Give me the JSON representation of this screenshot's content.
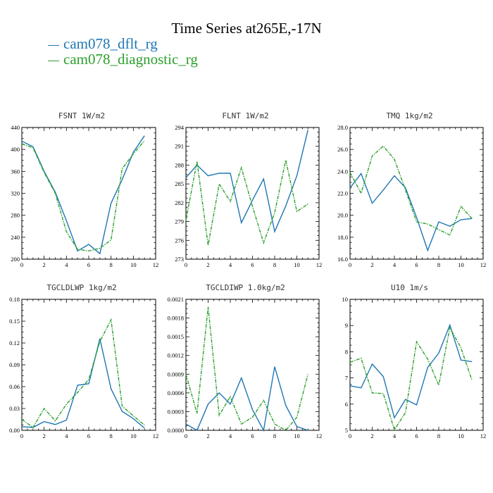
{
  "title": "Time Series at265E,-17N",
  "legend": [
    {
      "label": "cam078_dflt_rg",
      "color": "#1f77b4"
    },
    {
      "label": "cam078_diagnostic_rg",
      "color": "#2ca02c"
    }
  ],
  "chart_data": [
    {
      "type": "line",
      "title": "FSNT   1W/m2",
      "xlim": [
        0,
        12
      ],
      "xticks": [
        "0",
        "2",
        "4",
        "6",
        "8",
        "10",
        "12"
      ],
      "ylim": [
        200,
        440
      ],
      "yticks": [
        "200",
        "240",
        "280",
        "320",
        "360",
        "400",
        "440"
      ],
      "x": [
        0,
        1,
        2,
        3,
        4,
        5,
        6,
        7,
        8,
        9,
        10,
        11
      ],
      "series": [
        {
          "name": "cam078_dflt_rg",
          "color": "#1f77b4",
          "values": [
            415,
            405,
            360,
            322,
            270,
            215,
            227,
            210,
            302,
            345,
            395,
            425
          ]
        },
        {
          "name": "cam078_diagnostic_rg",
          "color": "#2ca02c",
          "values": [
            410,
            403,
            358,
            320,
            250,
            218,
            215,
            220,
            235,
            365,
            392,
            416
          ]
        }
      ]
    },
    {
      "type": "line",
      "title": "FLNT   1W/m2",
      "xlim": [
        0,
        12
      ],
      "xticks": [
        "0",
        "2",
        "4",
        "6",
        "8",
        "10",
        "12"
      ],
      "ylim": [
        273,
        294
      ],
      "yticks": [
        "273",
        "276",
        "279",
        "282",
        "285",
        "288",
        "291",
        "294"
      ],
      "x": [
        0,
        1,
        2,
        3,
        4,
        5,
        6,
        7,
        8,
        9,
        10,
        11
      ],
      "series": [
        {
          "name": "cam078_dflt_rg",
          "color": "#1f77b4",
          "values": [
            286,
            288,
            286.3,
            286.7,
            286.7,
            278.8,
            282.4,
            285.8,
            277.4,
            281.5,
            286.3,
            293.6
          ]
        },
        {
          "name": "cam078_diagnostic_rg",
          "color": "#2ca02c",
          "values": [
            279.2,
            288.6,
            275.2,
            285,
            282.2,
            287.6,
            281.4,
            275.6,
            280.4,
            288.8,
            280.6,
            281.8
          ]
        }
      ]
    },
    {
      "type": "line",
      "title": "TMQ   1kg/m2",
      "xlim": [
        0,
        12
      ],
      "xticks": [
        "0",
        "2",
        "4",
        "6",
        "8",
        "10",
        "12"
      ],
      "ylim": [
        16,
        28
      ],
      "yticks": [
        "16.0",
        "18.0",
        "20.0",
        "22.0",
        "24.0",
        "26.0",
        "28.0"
      ],
      "x": [
        0,
        1,
        2,
        3,
        4,
        5,
        6,
        7,
        8,
        9,
        10,
        11
      ],
      "series": [
        {
          "name": "cam078_dflt_rg",
          "color": "#1f77b4",
          "values": [
            22.5,
            23.8,
            21.1,
            22.3,
            23.6,
            22.5,
            19.8,
            16.8,
            19.4,
            19.0,
            19.6,
            19.7
          ]
        },
        {
          "name": "cam078_diagnostic_rg",
          "color": "#2ca02c",
          "values": [
            23.9,
            22,
            25.4,
            26.3,
            25.1,
            22.3,
            19.4,
            19.2,
            18.7,
            18.2,
            20.8,
            19.7
          ]
        }
      ]
    },
    {
      "type": "line",
      "title": "TGCLDLWP   1kg/m2",
      "xlim": [
        0,
        12
      ],
      "xticks": [
        "0",
        "2",
        "4",
        "6",
        "8",
        "10",
        "12"
      ],
      "ylim": [
        0,
        0.18
      ],
      "yticks": [
        "0.00",
        "0.03",
        "0.06",
        "0.09",
        "0.12",
        "0.15",
        "0.18"
      ],
      "x": [
        0,
        1,
        2,
        3,
        4,
        5,
        6,
        7,
        8,
        9,
        10,
        11
      ],
      "series": [
        {
          "name": "cam078_dflt_rg",
          "color": "#1f77b4",
          "values": [
            0.005,
            0.004,
            0.012,
            0.008,
            0.014,
            0.062,
            0.064,
            0.126,
            0.057,
            0.026,
            0.016,
            0.003
          ]
        },
        {
          "name": "cam078_diagnostic_rg",
          "color": "#2ca02c",
          "values": [
            0.015,
            0.004,
            0.03,
            0.013,
            0.036,
            0.052,
            0.07,
            0.122,
            0.152,
            0.033,
            0.02,
            0.007
          ]
        }
      ]
    },
    {
      "type": "line",
      "title": "TGCLDIWP   1.0kg/m2",
      "xlim": [
        0,
        12
      ],
      "xticks": [
        "0",
        "2",
        "4",
        "6",
        "8",
        "10",
        "12"
      ],
      "ylim": [
        0,
        0.0021
      ],
      "yticks": [
        "0.0000",
        "0.0003",
        "0.0006",
        "0.0009",
        "0.0012",
        "0.0015",
        "0.0018",
        "0.0021"
      ],
      "x": [
        0,
        1,
        2,
        3,
        4,
        5,
        6,
        7,
        8,
        9,
        10,
        11
      ],
      "series": [
        {
          "name": "cam078_dflt_rg",
          "color": "#1f77b4",
          "values": [
            0.0001,
            0.0,
            0.00042,
            0.0006,
            0.00042,
            0.00084,
            0.00033,
            0.0,
            0.00102,
            0.0004,
            6e-05,
            0.0
          ]
        },
        {
          "name": "cam078_diagnostic_rg",
          "color": "#2ca02c",
          "values": [
            0.0009,
            0.00027,
            0.00198,
            0.00024,
            0.00054,
            0.0001,
            0.00021,
            0.00048,
            0.0001,
            0.0,
            0.00021,
            0.0009
          ]
        }
      ]
    },
    {
      "type": "line",
      "title": "U10   1m/s",
      "xlim": [
        0,
        12
      ],
      "xticks": [
        "0",
        "2",
        "4",
        "6",
        "8",
        "10",
        "12"
      ],
      "ylim": [
        5,
        10
      ],
      "yticks": [
        "5",
        "6",
        "7",
        "8",
        "9",
        "10"
      ],
      "x": [
        0,
        1,
        2,
        3,
        4,
        5,
        6,
        7,
        8,
        9,
        10,
        11
      ],
      "series": [
        {
          "name": "cam078_dflt_rg",
          "color": "#1f77b4",
          "values": [
            6.7,
            6.62,
            7.53,
            7.05,
            5.48,
            6.18,
            5.97,
            7.4,
            7.95,
            9.02,
            7.68,
            7.62
          ]
        },
        {
          "name": "cam078_diagnostic_rg",
          "color": "#2ca02c",
          "values": [
            7.6,
            7.75,
            6.43,
            6.4,
            5.02,
            5.68,
            8.38,
            7.72,
            6.72,
            8.92,
            8.15,
            6.9
          ]
        }
      ]
    }
  ]
}
